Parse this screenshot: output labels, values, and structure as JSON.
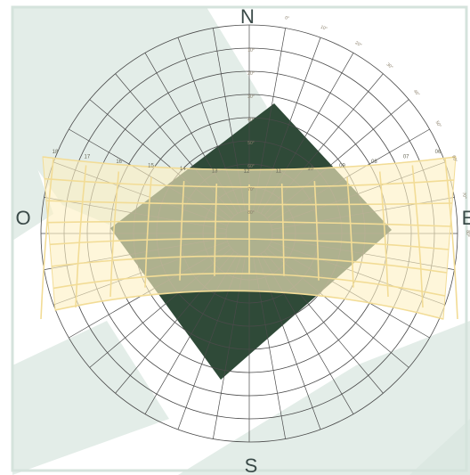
{
  "diagram": {
    "cardinals": {
      "north": "N",
      "south": "S",
      "west": "O",
      "east": "E"
    },
    "elevation_labels": [
      "10°",
      "20°",
      "30°",
      "40°",
      "50°",
      "60°",
      "70°",
      "80°"
    ],
    "azimuth_labels": [
      "0°",
      "10°",
      "20°",
      "30°",
      "40°",
      "50°",
      "60°",
      "70°",
      "80°"
    ],
    "hour_labels": [
      "18",
      "17",
      "16",
      "15",
      "14",
      "13",
      "12",
      "11",
      "10",
      "09",
      "08",
      "07",
      "06"
    ],
    "colors": {
      "background": "#ffffff",
      "frame": "#d5e3dc",
      "shadow_strips": "#e3ede8",
      "dark_obstacle": "#2f4a38",
      "sun_band": "#fdf0c4",
      "sun_band_stroke": "#f2dc96",
      "grid_line": "#4a4a4a",
      "cardinal_text": "#3a4a48"
    }
  }
}
